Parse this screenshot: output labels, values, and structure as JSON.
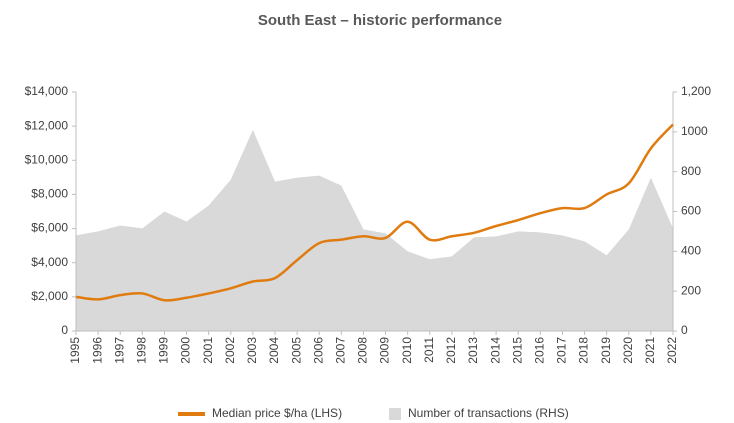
{
  "chart_data": {
    "type": "line-area",
    "title": "South East – historic performance",
    "categories": [
      "1995",
      "1996",
      "1997",
      "1998",
      "1999",
      "2000",
      "2001",
      "2002",
      "2003",
      "2004",
      "2005",
      "2006",
      "2007",
      "2008",
      "2009",
      "2010",
      "2011",
      "2012",
      "2013",
      "2014",
      "2015",
      "2016",
      "2017",
      "2018",
      "2019",
      "2020",
      "2021",
      "2022"
    ],
    "series": [
      {
        "name": "Median price $/ha (LHS)",
        "color": "#e07b10",
        "kind": "line",
        "axis": "y",
        "values": [
          2000,
          1850,
          2100,
          2200,
          1800,
          1950,
          2200,
          2500,
          2900,
          3100,
          4150,
          5150,
          5350,
          5550,
          5450,
          6400,
          5350,
          5550,
          5750,
          6150,
          6500,
          6900,
          7200,
          7200,
          8000,
          8650,
          10700,
          12100
        ]
      },
      {
        "name": "Number of transactions (RHS)",
        "color": "#d9d9d9",
        "kind": "area",
        "axis": "y2",
        "values": [
          480,
          500,
          530,
          515,
          600,
          550,
          630,
          760,
          1010,
          750,
          770,
          780,
          730,
          510,
          490,
          400,
          360,
          375,
          470,
          475,
          500,
          495,
          480,
          450,
          380,
          510,
          770,
          515
        ]
      }
    ],
    "ylim": [
      0,
      14000
    ],
    "yticks": [
      0,
      {
        "value": 2000,
        "label": "$2,000"
      },
      {
        "value": 4000,
        "label": "$4,000"
      },
      {
        "value": 6000,
        "label": "$6,000"
      },
      {
        "value": 8000,
        "label": "$8,000"
      },
      {
        "value": 10000,
        "label": "$10,000"
      },
      {
        "value": 12000,
        "label": "$12,000"
      },
      {
        "value": 14000,
        "label": "$14,000"
      }
    ],
    "y2lim": [
      0,
      1200
    ],
    "y2ticks": [
      0,
      200,
      400,
      600,
      800,
      1000,
      {
        "value": 1200,
        "label": "1,200"
      }
    ]
  }
}
